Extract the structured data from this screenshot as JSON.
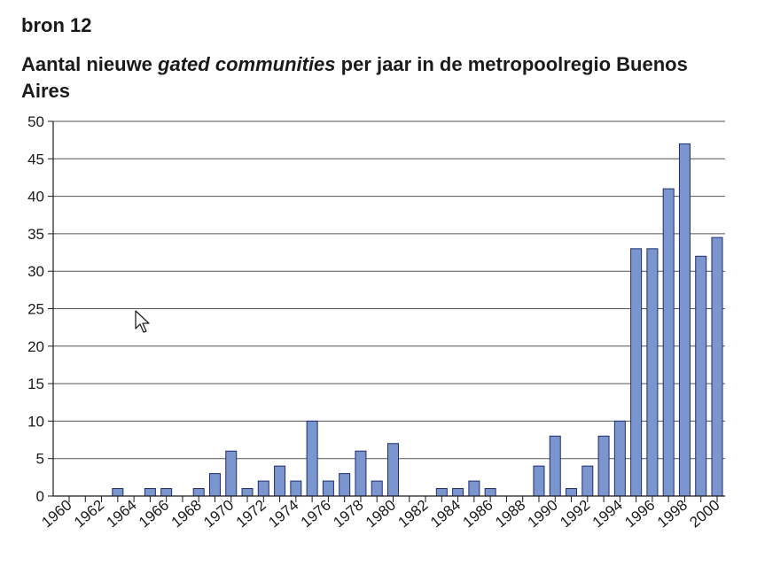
{
  "header": {
    "source": "bron 12",
    "title_pre": "Aantal nieuwe ",
    "title_em": "gated communities",
    "title_post": " per jaar in de metropoolregio Buenos Aires"
  },
  "colors": {
    "bar_fill": "#7b96cf",
    "bar_stroke": "#1f2d6b",
    "grid": "#555555",
    "axis": "#1a1a1a"
  },
  "chart_data": {
    "type": "bar",
    "title": "Aantal nieuwe gated communities per jaar in de metropoolregio Buenos Aires",
    "ylim": [
      0,
      50
    ],
    "yticks": [
      0,
      5,
      10,
      15,
      20,
      25,
      30,
      35,
      40,
      45,
      50
    ],
    "xtick_labels": [
      "1960",
      "1962",
      "1964",
      "1966",
      "1968",
      "1970",
      "1972",
      "1974",
      "1976",
      "1978",
      "1980",
      "1982",
      "1984",
      "1986",
      "1988",
      "1990",
      "1992",
      "1994",
      "1996",
      "1998",
      "2000"
    ],
    "categories": [
      1960,
      1961,
      1962,
      1963,
      1964,
      1965,
      1966,
      1967,
      1968,
      1969,
      1970,
      1971,
      1972,
      1973,
      1974,
      1975,
      1976,
      1977,
      1978,
      1979,
      1980,
      1981,
      1982,
      1983,
      1984,
      1985,
      1986,
      1987,
      1988,
      1989,
      1990,
      1991,
      1992,
      1993,
      1994,
      1995,
      1996,
      1997,
      1998,
      1999,
      2000
    ],
    "values": [
      0,
      0,
      0,
      1,
      0,
      1,
      1,
      0,
      1,
      3,
      6,
      1,
      2,
      4,
      2,
      10,
      2,
      3,
      6,
      2,
      7,
      0,
      0,
      1,
      1,
      2,
      1,
      0,
      0,
      4,
      8,
      1,
      4,
      8,
      10,
      33,
      33,
      41,
      47,
      32,
      34.5
    ],
    "grid": true
  }
}
